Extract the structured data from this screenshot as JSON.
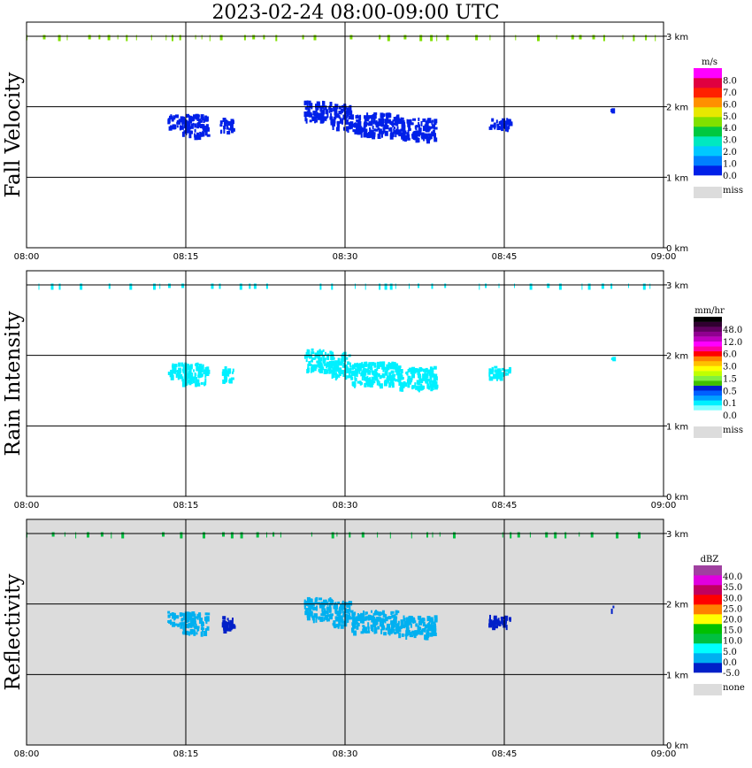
{
  "title": "2023-02-24   08:00-09:00 UTC",
  "x_ticks": [
    "08:00",
    "08:15",
    "08:30",
    "08:45",
    "09:00"
  ],
  "height_ticks": [
    "0 km",
    "1 km",
    "2 km",
    "3 km"
  ],
  "chart_data": [
    {
      "type": "heatmap",
      "ylabel": "Fall Velocity",
      "unit": "m/s",
      "background": "#ffffff",
      "colorbar": {
        "colors": [
          "#0020e8",
          "#0080ff",
          "#00c8ff",
          "#00e8c0",
          "#00c840",
          "#80e000",
          "#e8e800",
          "#ff9000",
          "#ff2000",
          "#e00040",
          "#ff00ff"
        ],
        "labels": [
          "0.0",
          "1.0",
          "2.0",
          "3.0",
          "4.0",
          "5.0",
          "6.0",
          "7.0",
          "8.0"
        ],
        "miss_label": "miss"
      },
      "xlim": [
        0,
        60
      ],
      "ylim": [
        0,
        3.2
      ],
      "echoes": [
        {
          "t0": 13.2,
          "t1": 15.0,
          "h0": 1.72,
          "h1": 1.9,
          "color": "#0020e8"
        },
        {
          "t0": 14.6,
          "t1": 17.0,
          "h0": 1.6,
          "h1": 1.9,
          "color": "#0020e8"
        },
        {
          "t0": 18.2,
          "t1": 19.4,
          "h0": 1.65,
          "h1": 1.85,
          "color": "#0020e8"
        },
        {
          "t0": 26.1,
          "t1": 28.7,
          "h0": 1.8,
          "h1": 2.1,
          "color": "#0020e8"
        },
        {
          "t0": 28.7,
          "t1": 30.5,
          "h0": 1.7,
          "h1": 2.05,
          "color": "#0020e8"
        },
        {
          "t0": 30.5,
          "t1": 35.0,
          "h0": 1.6,
          "h1": 1.92,
          "color": "#0020e8"
        },
        {
          "t0": 35.0,
          "t1": 38.5,
          "h0": 1.55,
          "h1": 1.85,
          "color": "#0020e8"
        },
        {
          "t0": 43.5,
          "t1": 45.5,
          "h0": 1.7,
          "h1": 1.85,
          "color": "#0020e8"
        },
        {
          "t0": 55.0,
          "t1": 55.2,
          "h0": 1.92,
          "h1": 2.0,
          "color": "#0020e8"
        }
      ],
      "top_layer": {
        "h": 2.98,
        "color": "#80e000"
      }
    },
    {
      "type": "heatmap",
      "ylabel": "Rain Intensity",
      "unit": "mm/hr",
      "background": "#ffffff",
      "colorbar": {
        "colors": [
          "#ffffff",
          "#80ffff",
          "#00f0ff",
          "#00a0ff",
          "#0060ff",
          "#0020d0",
          "#40c000",
          "#80f040",
          "#c0ff00",
          "#ffff00",
          "#ffc000",
          "#ff8000",
          "#ff0000",
          "#ff00a0",
          "#ff00ff",
          "#c000c0",
          "#900090",
          "#600060",
          "#300030",
          "#000000"
        ],
        "labels": [
          "0.0",
          "0.1",
          "0.5",
          "1.5",
          "3.0",
          "6.0",
          "12.0",
          "48.0"
        ],
        "miss_label": "miss"
      },
      "xlim": [
        0,
        60
      ],
      "ylim": [
        0,
        3.2
      ],
      "echoes": [
        {
          "t0": 13.2,
          "t1": 15.0,
          "h0": 1.72,
          "h1": 1.9,
          "color": "#00f0ff"
        },
        {
          "t0": 14.6,
          "t1": 17.0,
          "h0": 1.6,
          "h1": 1.9,
          "color": "#00f0ff"
        },
        {
          "t0": 18.2,
          "t1": 19.4,
          "h0": 1.65,
          "h1": 1.85,
          "color": "#00f0ff"
        },
        {
          "t0": 26.1,
          "t1": 28.7,
          "h0": 1.8,
          "h1": 2.1,
          "color": "#00f0ff"
        },
        {
          "t0": 28.7,
          "t1": 30.5,
          "h0": 1.7,
          "h1": 2.05,
          "color": "#00f0ff"
        },
        {
          "t0": 30.5,
          "t1": 35.0,
          "h0": 1.6,
          "h1": 1.92,
          "color": "#00f0ff"
        },
        {
          "t0": 35.0,
          "t1": 38.5,
          "h0": 1.55,
          "h1": 1.85,
          "color": "#00f0ff"
        },
        {
          "t0": 43.5,
          "t1": 45.5,
          "h0": 1.7,
          "h1": 1.85,
          "color": "#00f0ff"
        },
        {
          "t0": 55.0,
          "t1": 55.2,
          "h0": 1.92,
          "h1": 2.0,
          "color": "#00f0ff"
        }
      ],
      "top_layer": {
        "h": 2.98,
        "color": "#00f0ff"
      }
    },
    {
      "type": "heatmap",
      "ylabel": "Reflectivity",
      "unit": "dBZ",
      "background": "#dcdcdc",
      "colorbar": {
        "colors": [
          "#0020c8",
          "#00b0f0",
          "#00ffff",
          "#00c040",
          "#00c000",
          "#ffff00",
          "#ff8000",
          "#ff0000",
          "#c00060",
          "#e000e0",
          "#a040a0"
        ],
        "labels": [
          "-5.0",
          "0.0",
          "5.0",
          "10.0",
          "15.0",
          "20.0",
          "25.0",
          "30.0",
          "35.0",
          "40.0"
        ],
        "miss_label": "none"
      },
      "xlim": [
        0,
        60
      ],
      "ylim": [
        0,
        3.2
      ],
      "echoes": [
        {
          "t0": 13.2,
          "t1": 15.0,
          "h0": 1.72,
          "h1": 1.9,
          "color": "#00b0f0"
        },
        {
          "t0": 14.6,
          "t1": 17.0,
          "h0": 1.6,
          "h1": 1.9,
          "color": "#00b0f0"
        },
        {
          "t0": 18.2,
          "t1": 19.4,
          "h0": 1.65,
          "h1": 1.85,
          "color": "#0020c8"
        },
        {
          "t0": 26.1,
          "t1": 28.7,
          "h0": 1.8,
          "h1": 2.1,
          "color": "#00b0f0"
        },
        {
          "t0": 28.7,
          "t1": 30.5,
          "h0": 1.7,
          "h1": 2.05,
          "color": "#00b0f0"
        },
        {
          "t0": 30.5,
          "t1": 35.0,
          "h0": 1.6,
          "h1": 1.92,
          "color": "#00b0f0"
        },
        {
          "t0": 35.0,
          "t1": 38.5,
          "h0": 1.55,
          "h1": 1.85,
          "color": "#00b0f0"
        },
        {
          "t0": 43.5,
          "t1": 45.5,
          "h0": 1.7,
          "h1": 1.85,
          "color": "#0020c8"
        },
        {
          "t0": 55.0,
          "t1": 55.2,
          "h0": 1.92,
          "h1": 2.0,
          "color": "#0020c8"
        }
      ],
      "top_layer": {
        "h": 2.98,
        "color": "#00c040"
      }
    }
  ]
}
